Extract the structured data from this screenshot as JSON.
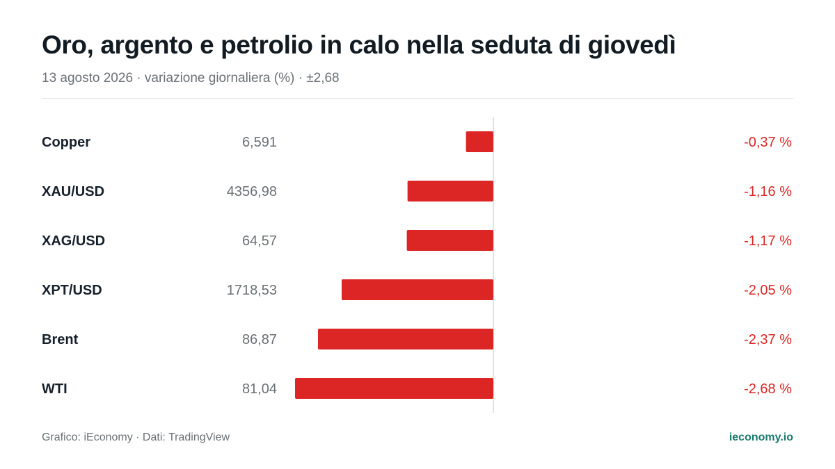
{
  "header": {
    "title": "Oro, argento e petrolio in calo nella seduta di giovedì",
    "subtitle": "13 agosto 2026 · variazione giornaliera (%) · ±2,68"
  },
  "footer": {
    "source": "Grafico: iEconomy · Dati: TradingView",
    "brand": "ieconomy.io"
  },
  "colors": {
    "negative": "#dc2626",
    "label": "#16202a",
    "price": "#6b7075",
    "axis": "#d9d9d9"
  },
  "chart_data": {
    "type": "bar",
    "orientation": "horizontal",
    "title": "Oro, argento e petrolio in calo nella seduta di giovedì",
    "categories": [
      "Copper",
      "XAU/USD",
      "XAG/USD",
      "XPT/USD",
      "Brent",
      "WTI"
    ],
    "prices": [
      "6,591",
      "4356,98",
      "64,57",
      "1718,53",
      "86,87",
      "81,04"
    ],
    "values": [
      -0.37,
      -1.16,
      -1.17,
      -2.05,
      -2.37,
      -2.68
    ],
    "value_labels": [
      "-0,37 %",
      "-1,16 %",
      "-1,17 %",
      "-2,05 %",
      "-2,37 %",
      "-2,68 %"
    ],
    "xlim": [
      -2.68,
      2.68
    ],
    "grid": false,
    "legend": "none"
  }
}
